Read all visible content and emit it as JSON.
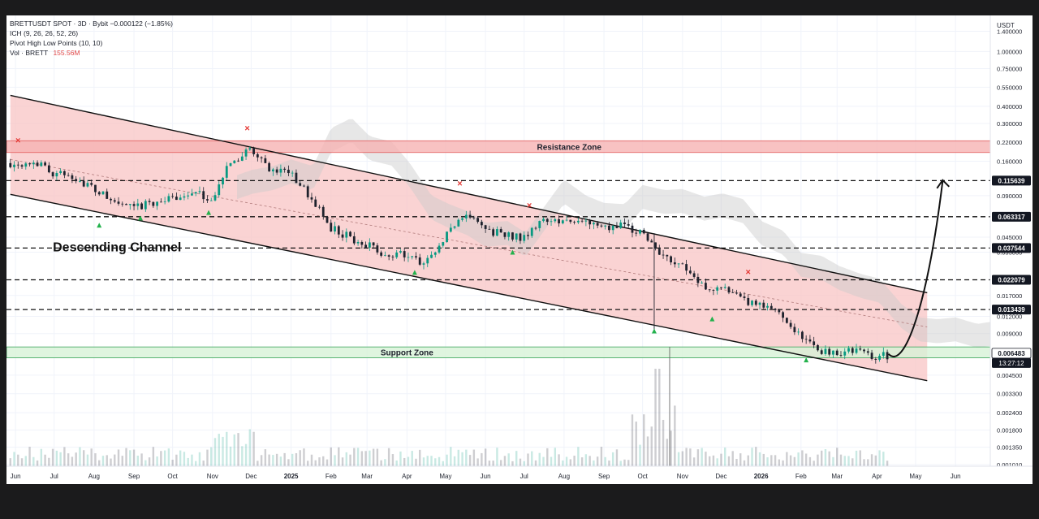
{
  "legend": {
    "symbol": "BRETTUSDT SPOT · 3D · Bybit",
    "change": "−0.000122 (−1.85%)",
    "ichimoku": "ICH (9, 26, 26, 52, 26)",
    "pivots": "Pivot High Low Points (10, 10)",
    "volume_label": "Vol · BRETT",
    "volume_value": "155.56M"
  },
  "price_scale": {
    "unit": "USDT",
    "ticks": [
      "1.400000",
      "1.000000",
      "0.750000",
      "0.550000",
      "0.400000",
      "0.300000",
      "0.220000",
      "0.160000",
      "0.090000",
      "0.045000",
      "0.035000",
      "0.017000",
      "0.012000",
      "0.009000",
      "0.004500",
      "0.003300",
      "0.002400",
      "0.001800",
      "0.001350",
      "0.001010"
    ],
    "tags": [
      {
        "label": "0.115639",
        "value": 0.115639,
        "style": "dark"
      },
      {
        "label": "0.063317",
        "value": 0.063317,
        "style": "dark"
      },
      {
        "label": "0.037544",
        "value": 0.037544,
        "style": "dark"
      },
      {
        "label": "0.022079",
        "value": 0.022079,
        "style": "dark"
      },
      {
        "label": "0.013439",
        "value": 0.013439,
        "style": "dark"
      },
      {
        "label": "0.006483",
        "value": 0.006483,
        "style": "light"
      }
    ],
    "countdown": "13:27:12"
  },
  "time_axis": [
    "Jun",
    "Jul",
    "Aug",
    "Sep",
    "Oct",
    "Nov",
    "Dec",
    "2025",
    "Feb",
    "Mar",
    "Apr",
    "May",
    "Jun",
    "Jul",
    "Aug",
    "Sep",
    "Oct",
    "Nov",
    "Dec",
    "2026",
    "Feb",
    "Mar",
    "Apr",
    "May",
    "Jun"
  ],
  "annotations": {
    "resistance": "Resistance Zone",
    "support": "Support Zone",
    "channel": "Descending Channel"
  },
  "colors": {
    "up": "#089981",
    "down": "#1e222d",
    "channel_fill": "#f8c4c4",
    "resistance_fill": "#f6b3b3",
    "support_fill": "#d7f3d7",
    "support_line": "#3aa35a",
    "pivot_high": "#e53935",
    "pivot_low": "#22b14c",
    "cloud": "#c9c9c9"
  },
  "chart_data": {
    "type": "candlestick",
    "scale": "log",
    "ylim": [
      0.00101,
      1.55
    ],
    "x_range": [
      "2024-05-25",
      "2026-06-28"
    ],
    "ohlc_points": [
      {
        "date": "2024-06-01",
        "close": 0.155
      },
      {
        "date": "2024-06-15",
        "close": 0.16
      },
      {
        "date": "2024-07-01",
        "close": 0.13
      },
      {
        "date": "2024-07-15",
        "close": 0.125
      },
      {
        "date": "2024-08-01",
        "close": 0.1
      },
      {
        "date": "2024-08-15",
        "close": 0.082
      },
      {
        "date": "2024-09-01",
        "close": 0.072
      },
      {
        "date": "2024-09-15",
        "close": 0.08
      },
      {
        "date": "2024-10-01",
        "close": 0.085
      },
      {
        "date": "2024-10-15",
        "close": 0.095
      },
      {
        "date": "2024-11-01",
        "close": 0.085
      },
      {
        "date": "2024-11-15",
        "close": 0.16
      },
      {
        "date": "2024-12-01",
        "close": 0.19
      },
      {
        "date": "2024-12-15",
        "close": 0.14
      },
      {
        "date": "2025-01-01",
        "close": 0.128
      },
      {
        "date": "2025-01-15",
        "close": 0.09
      },
      {
        "date": "2025-02-01",
        "close": 0.052
      },
      {
        "date": "2025-02-15",
        "close": 0.045
      },
      {
        "date": "2025-03-01",
        "close": 0.04
      },
      {
        "date": "2025-03-15",
        "close": 0.033
      },
      {
        "date": "2025-04-01",
        "close": 0.034
      },
      {
        "date": "2025-04-15",
        "close": 0.028
      },
      {
        "date": "2025-05-01",
        "close": 0.045
      },
      {
        "date": "2025-05-15",
        "close": 0.068
      },
      {
        "date": "2025-06-01",
        "close": 0.052
      },
      {
        "date": "2025-06-15",
        "close": 0.046
      },
      {
        "date": "2025-07-01",
        "close": 0.045
      },
      {
        "date": "2025-07-15",
        "close": 0.062
      },
      {
        "date": "2025-08-01",
        "close": 0.057
      },
      {
        "date": "2025-08-15",
        "close": 0.058
      },
      {
        "date": "2025-09-01",
        "close": 0.051
      },
      {
        "date": "2025-09-15",
        "close": 0.054
      },
      {
        "date": "2025-10-01",
        "close": 0.049
      },
      {
        "date": "2025-10-15",
        "close": 0.034
      },
      {
        "date": "2025-11-01",
        "close": 0.029
      },
      {
        "date": "2025-11-15",
        "close": 0.02
      },
      {
        "date": "2025-12-01",
        "close": 0.019
      },
      {
        "date": "2025-12-15",
        "close": 0.016
      },
      {
        "date": "2026-01-01",
        "close": 0.014
      },
      {
        "date": "2026-01-15",
        "close": 0.013
      },
      {
        "date": "2026-02-01",
        "close": 0.0085
      },
      {
        "date": "2026-02-15",
        "close": 0.0068
      },
      {
        "date": "2026-03-01",
        "close": 0.0066
      },
      {
        "date": "2026-03-15",
        "close": 0.0068
      },
      {
        "date": "2026-04-01",
        "close": 0.0061
      },
      {
        "date": "2026-04-10",
        "close": 0.0063
      }
    ],
    "levels": [
      0.115639,
      0.063317,
      0.037544,
      0.022079,
      0.013439
    ],
    "resistance_zone": [
      0.185,
      0.225
    ],
    "support_zone": [
      0.006,
      0.0072
    ],
    "channel": {
      "upper": [
        {
          "date": "2024-05-28",
          "price": 0.48
        },
        {
          "date": "2026-05-10",
          "price": 0.0178
        }
      ],
      "lower": [
        {
          "date": "2024-05-28",
          "price": 0.092
        },
        {
          "date": "2026-05-10",
          "price": 0.0041
        }
      ]
    },
    "pivot_highs": [
      {
        "date": "2024-06-03",
        "price": 0.215
      },
      {
        "date": "2024-11-28",
        "price": 0.265
      },
      {
        "date": "2025-05-12",
        "price": 0.105
      },
      {
        "date": "2025-07-05",
        "price": 0.073
      },
      {
        "date": "2025-12-22",
        "price": 0.024
      }
    ],
    "pivot_lows": [
      {
        "date": "2024-08-05",
        "price": 0.055
      },
      {
        "date": "2024-09-06",
        "price": 0.062
      },
      {
        "date": "2024-10-29",
        "price": 0.068
      },
      {
        "date": "2025-04-07",
        "price": 0.025
      },
      {
        "date": "2025-06-22",
        "price": 0.035
      },
      {
        "date": "2025-10-10",
        "price": 0.0094
      },
      {
        "date": "2025-11-24",
        "price": 0.0115
      },
      {
        "date": "2026-02-05",
        "price": 0.0058
      }
    ],
    "projection": [
      {
        "date": "2026-04-10",
        "price": 0.0064
      },
      {
        "date": "2026-04-22",
        "price": 0.0062
      },
      {
        "date": "2026-05-10",
        "price": 0.014
      },
      {
        "date": "2026-05-22",
        "price": 0.115
      }
    ],
    "volume": {
      "label": "Vol · BRETT",
      "last": "155.56M"
    }
  }
}
